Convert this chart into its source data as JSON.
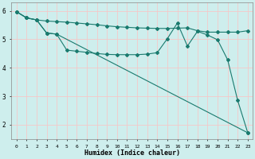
{
  "xlabel": "Humidex (Indice chaleur)",
  "background_color": "#ceeeed",
  "grid_color": "#f5c8c8",
  "line_color": "#1a7a6e",
  "xlim": [
    -0.5,
    23.5
  ],
  "ylim": [
    1.5,
    6.3
  ],
  "yticks": [
    2,
    3,
    4,
    5,
    6
  ],
  "xticks": [
    0,
    1,
    2,
    3,
    4,
    5,
    6,
    7,
    8,
    9,
    10,
    11,
    12,
    13,
    14,
    15,
    16,
    17,
    18,
    19,
    20,
    21,
    22,
    23
  ],
  "series1_x": [
    0,
    1,
    2,
    3,
    4,
    5,
    6,
    7,
    8,
    9,
    10,
    11,
    12,
    13,
    14,
    15,
    16,
    17,
    18,
    19,
    20,
    21,
    22,
    23
  ],
  "series1_y": [
    5.97,
    5.75,
    5.68,
    5.64,
    5.62,
    5.6,
    5.57,
    5.54,
    5.51,
    5.47,
    5.44,
    5.42,
    5.4,
    5.39,
    5.38,
    5.38,
    5.39,
    5.4,
    5.3,
    5.25,
    5.25,
    5.25,
    5.25,
    5.3
  ],
  "series2_x": [
    0,
    1,
    2,
    3,
    4,
    5,
    6,
    7,
    8,
    9,
    10,
    11,
    12,
    13,
    14,
    15,
    16,
    17,
    18,
    19,
    20,
    21,
    22,
    23
  ],
  "series2_y": [
    5.97,
    5.75,
    5.68,
    5.22,
    5.18,
    4.62,
    4.58,
    4.54,
    4.5,
    4.47,
    4.46,
    4.46,
    4.46,
    4.48,
    4.53,
    5.02,
    5.57,
    4.76,
    5.28,
    5.15,
    4.98,
    4.28,
    2.85,
    1.72
  ],
  "series3_x": [
    0,
    1,
    2,
    3,
    4,
    23
  ],
  "series3_y": [
    5.97,
    5.75,
    5.68,
    5.22,
    5.18,
    1.72
  ],
  "markersize": 2.0,
  "linewidth": 0.8
}
